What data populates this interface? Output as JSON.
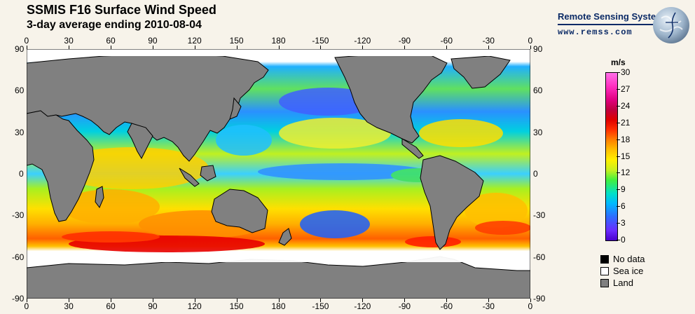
{
  "header": {
    "title": "SSMIS F16 Surface Wind Speed",
    "subtitle": "3-day average ending 2010-08-04"
  },
  "brand": {
    "name": "Remote Sensing Systems",
    "url": "www.remss.com"
  },
  "map": {
    "x_ticks": [
      "0",
      "30",
      "60",
      "90",
      "120",
      "150",
      "180",
      "-150",
      "-120",
      "-90",
      "-60",
      "-30",
      "0"
    ],
    "y_ticks": [
      "90",
      "60",
      "30",
      "0",
      "-30",
      "-60",
      "-90"
    ],
    "colors": {
      "land": "#808080",
      "sea_ice": "#ffffff",
      "no_data": "#000000",
      "ocean_calm": "#00c0ff"
    }
  },
  "colorbar": {
    "unit": "m/s",
    "ticks": [
      "30",
      "27",
      "24",
      "21",
      "18",
      "15",
      "12",
      "9",
      "6",
      "3",
      "0"
    ]
  },
  "legend": [
    {
      "label": "No data",
      "color": "#000000"
    },
    {
      "label": "Sea ice",
      "color": "#ffffff"
    },
    {
      "label": "Land",
      "color": "#808080"
    }
  ]
}
